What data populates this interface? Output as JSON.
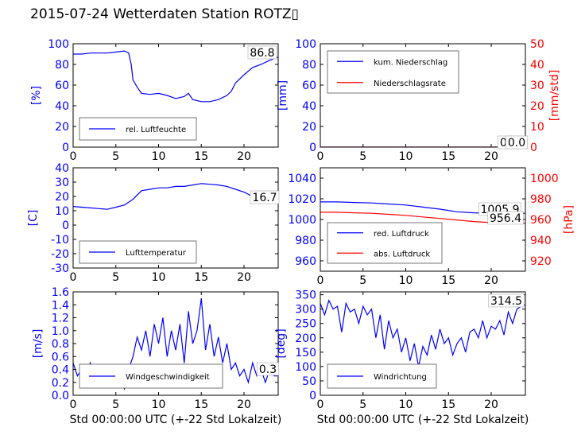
{
  "page_title": "2015-07-24 Wetterdaten Station ROTZ▯",
  "colors": {
    "blue": "#0000ff",
    "red": "#ff0000",
    "black": "#000000"
  },
  "chart_data": [
    {
      "type": "line",
      "id": "humidity",
      "ylabel": "[%]",
      "xlabel": "",
      "xlim": [
        0,
        24
      ],
      "ylim": [
        0,
        100
      ],
      "xticks": [
        0,
        5,
        10,
        15,
        20
      ],
      "yticks": [
        0,
        20,
        40,
        60,
        80,
        100
      ],
      "grid": false,
      "legend_position": "lower-left",
      "series": [
        {
          "name": "rel. Luftfeuchte",
          "color": "#0000ff",
          "x": [
            0,
            1,
            2,
            3,
            4,
            5,
            6,
            6.5,
            6.8,
            7,
            7.5,
            8,
            9,
            10,
            11,
            12,
            13,
            13.5,
            14,
            15,
            16,
            17,
            18,
            18.5,
            19,
            20,
            21,
            22,
            23,
            24
          ],
          "y": [
            90,
            90,
            91,
            91,
            91,
            92,
            93,
            91,
            80,
            65,
            58,
            52,
            51,
            52,
            50,
            47,
            49,
            52,
            46,
            44,
            44,
            46,
            50,
            54,
            62,
            70,
            77,
            80,
            84,
            87
          ]
        }
      ],
      "annotations": [
        {
          "text": "86.8",
          "position": "top-right"
        }
      ]
    },
    {
      "type": "line",
      "id": "precipitation",
      "ylabel": "[mm]",
      "y2label": "[mm/std]",
      "xlabel": "",
      "xlim": [
        0,
        24
      ],
      "ylim": [
        0,
        100
      ],
      "y2lim": [
        0,
        50
      ],
      "xticks": [
        0,
        5,
        10,
        15,
        20
      ],
      "yticks": [
        0,
        20,
        40,
        60,
        80,
        100
      ],
      "y2ticks": [
        0,
        10,
        20,
        30,
        40,
        50
      ],
      "grid": false,
      "legend_position": "upper-left",
      "series": [
        {
          "name": "kum. Niederschlag",
          "color": "#0000ff",
          "axis": "left",
          "x": [
            0,
            24
          ],
          "y": [
            0,
            0
          ]
        },
        {
          "name": "Niederschlagsrate",
          "color": "#ff0000",
          "axis": "right",
          "x": [
            0,
            24
          ],
          "y": [
            0,
            0
          ]
        }
      ],
      "annotations": [
        {
          "text": "0.0",
          "position": "bottom-right"
        },
        {
          "text": "0.0",
          "position": "bottom-right"
        }
      ]
    },
    {
      "type": "line",
      "id": "temperature",
      "ylabel": "[C]",
      "xlabel": "",
      "xlim": [
        0,
        24
      ],
      "ylim": [
        -30,
        40
      ],
      "xticks": [
        0,
        5,
        10,
        15,
        20
      ],
      "yticks": [
        -30,
        -20,
        -10,
        0,
        10,
        20,
        30,
        40
      ],
      "grid": false,
      "legend_position": "lower-left",
      "series": [
        {
          "name": "Lufttemperatur",
          "color": "#0000ff",
          "x": [
            0,
            1,
            2,
            3,
            4,
            5,
            6,
            7,
            8,
            9,
            10,
            11,
            12,
            13,
            14,
            15,
            16,
            17,
            18,
            19,
            20,
            21,
            22,
            23,
            24
          ],
          "y": [
            13,
            12.5,
            12,
            11.5,
            11,
            12.5,
            14,
            18,
            24,
            25,
            26,
            26,
            27,
            27,
            28,
            29,
            28.5,
            28,
            27,
            25,
            23,
            20,
            18,
            17.5,
            16.7
          ]
        }
      ],
      "annotations": [
        {
          "text": "16.7",
          "position": "right"
        }
      ]
    },
    {
      "type": "line",
      "id": "pressure",
      "ylabel": "",
      "y2label": "[hPa]",
      "xlabel": "",
      "xlim": [
        0,
        24
      ],
      "ylim": [
        950,
        1050
      ],
      "y2lim": [
        910,
        1010
      ],
      "xticks": [
        0,
        5,
        10,
        15,
        20
      ],
      "yticks": [
        960,
        980,
        1000,
        1020,
        1040
      ],
      "y2ticks": [
        920,
        940,
        960,
        980,
        1000
      ],
      "grid": false,
      "legend_position": "lower-left",
      "series": [
        {
          "name": "red. Luftdruck",
          "color": "#0000ff",
          "axis": "left",
          "x": [
            0,
            2,
            4,
            6,
            8,
            10,
            12,
            14,
            16,
            18,
            20,
            22,
            24
          ],
          "y": [
            1017,
            1017,
            1016.5,
            1016,
            1015,
            1014,
            1012,
            1010,
            1007.5,
            1006.5,
            1006,
            1006,
            1006
          ]
        },
        {
          "name": "abs. Luftdruck",
          "color": "#ff0000",
          "axis": "right",
          "x": [
            0,
            2,
            4,
            6,
            8,
            10,
            12,
            14,
            16,
            18,
            20,
            22,
            24
          ],
          "y": [
            967,
            967,
            966.5,
            966,
            965,
            964,
            962.5,
            961,
            959.5,
            958,
            957,
            956.5,
            956.4
          ]
        }
      ],
      "annotations": [
        {
          "text": "1005.9",
          "position": "right"
        },
        {
          "text": "956.4",
          "position": "right"
        }
      ]
    },
    {
      "type": "line",
      "id": "windspeed",
      "ylabel": "[m/s]",
      "xlabel": "Std 00:00:00 UTC (+-22 Std Lokalzeit)",
      "xlim": [
        0,
        24
      ],
      "ylim": [
        0,
        1.6
      ],
      "xticks": [
        0,
        5,
        10,
        15,
        20
      ],
      "yticks": [
        0,
        0.2,
        0.4,
        0.6,
        0.8,
        1.0,
        1.2,
        1.4,
        1.6
      ],
      "grid": false,
      "legend_position": "lower-center",
      "series": [
        {
          "name": "Windgeschwindigkeit",
          "color": "#0000ff",
          "x": [
            0,
            0.5,
            1,
            1.5,
            2,
            2.5,
            3,
            3.5,
            4,
            4.5,
            5,
            5.5,
            6,
            6.5,
            7,
            7.5,
            8,
            8.5,
            9,
            9.5,
            10,
            10.5,
            11,
            11.5,
            12,
            12.5,
            13,
            13.5,
            14,
            14.5,
            15,
            15.5,
            16,
            16.5,
            17,
            17.5,
            18,
            18.5,
            19,
            19.5,
            20,
            20.5,
            21,
            21.5,
            22,
            22.5,
            23,
            23.5,
            24
          ],
          "y": [
            0.5,
            0.3,
            0.4,
            0.2,
            0.5,
            0.3,
            0.4,
            0.3,
            0.2,
            0.3,
            0.2,
            0.3,
            0.1,
            0.4,
            0.6,
            0.9,
            0.7,
            1.0,
            0.6,
            1.1,
            0.8,
            1.2,
            0.6,
            1.0,
            0.7,
            1.1,
            0.5,
            1.3,
            0.8,
            1.0,
            1.5,
            0.7,
            1.1,
            0.6,
            0.9,
            0.5,
            0.8,
            0.4,
            0.5,
            0.3,
            0.4,
            0.2,
            0.5,
            0.3,
            0.4,
            0.2,
            0.4,
            0.3,
            0.3
          ]
        }
      ],
      "annotations": [
        {
          "text": "0.3",
          "position": "right"
        }
      ]
    },
    {
      "type": "line",
      "id": "winddirection",
      "ylabel": "[deg]",
      "xlabel": "Std 00:00:00 UTC (+-22 Std Lokalzeit)",
      "xlim": [
        0,
        24
      ],
      "ylim": [
        0,
        360
      ],
      "xticks": [
        0,
        5,
        10,
        15,
        20
      ],
      "yticks": [
        0,
        50,
        100,
        150,
        200,
        250,
        300,
        350
      ],
      "grid": false,
      "legend_position": "lower-left",
      "series": [
        {
          "name": "Windrichtung",
          "color": "#0000ff",
          "x": [
            0,
            0.5,
            1,
            1.5,
            2,
            2.5,
            3,
            3.5,
            4,
            4.5,
            5,
            5.5,
            6,
            6.5,
            7,
            7.5,
            8,
            8.5,
            9,
            9.5,
            10,
            10.5,
            11,
            11.5,
            12,
            12.5,
            13,
            13.5,
            14,
            14.5,
            15,
            15.5,
            16,
            16.5,
            17,
            17.5,
            18,
            18.5,
            19,
            19.5,
            20,
            20.5,
            21,
            21.5,
            22,
            22.5,
            23,
            23.5,
            24
          ],
          "y": [
            320,
            280,
            330,
            300,
            310,
            220,
            320,
            290,
            300,
            250,
            310,
            280,
            300,
            200,
            280,
            160,
            260,
            200,
            230,
            150,
            200,
            120,
            180,
            100,
            170,
            140,
            210,
            160,
            230,
            180,
            200,
            140,
            180,
            200,
            150,
            220,
            230,
            200,
            260,
            200,
            240,
            230,
            260,
            210,
            290,
            250,
            300,
            310,
            314.5
          ]
        }
      ],
      "annotations": [
        {
          "text": "314.5",
          "position": "top-right"
        }
      ]
    }
  ]
}
